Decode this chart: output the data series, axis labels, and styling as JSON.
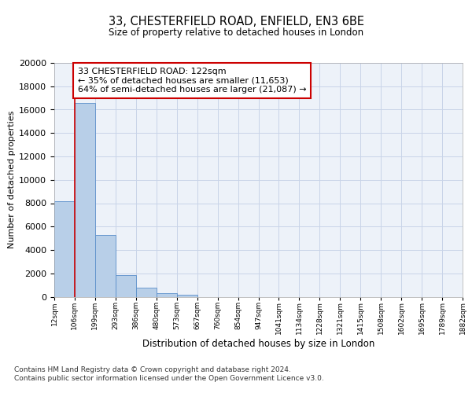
{
  "title1": "33, CHESTERFIELD ROAD, ENFIELD, EN3 6BE",
  "title2": "Size of property relative to detached houses in London",
  "xlabel": "Distribution of detached houses by size in London",
  "ylabel": "Number of detached properties",
  "annotation_line1": "33 CHESTERFIELD ROAD: 122sqm",
  "annotation_line2": "← 35% of detached houses are smaller (11,653)",
  "annotation_line3": "64% of semi-detached houses are larger (21,087) →",
  "bar_heights": [
    8200,
    16600,
    5300,
    1850,
    800,
    300,
    200,
    0,
    0,
    0,
    0,
    0,
    0,
    0,
    0,
    0,
    0,
    0,
    0,
    0
  ],
  "bar_color": "#b8cfe8",
  "bar_edge_color": "#5b8fca",
  "red_line_color": "#cc0000",
  "grid_color": "#c8d4e8",
  "background_color": "#edf2f9",
  "ylim": [
    0,
    20000
  ],
  "yticks": [
    0,
    2000,
    4000,
    6000,
    8000,
    10000,
    12000,
    14000,
    16000,
    18000,
    20000
  ],
  "tick_labels": [
    "12sqm",
    "106sqm",
    "199sqm",
    "293sqm",
    "386sqm",
    "480sqm",
    "573sqm",
    "667sqm",
    "760sqm",
    "854sqm",
    "947sqm",
    "1041sqm",
    "1134sqm",
    "1228sqm",
    "1321sqm",
    "1415sqm",
    "1508sqm",
    "1602sqm",
    "1695sqm",
    "1789sqm",
    "1882sqm"
  ],
  "n_bins": 20,
  "red_line_bin": 1,
  "footer_line1": "Contains HM Land Registry data © Crown copyright and database right 2024.",
  "footer_line2": "Contains public sector information licensed under the Open Government Licence v3.0."
}
